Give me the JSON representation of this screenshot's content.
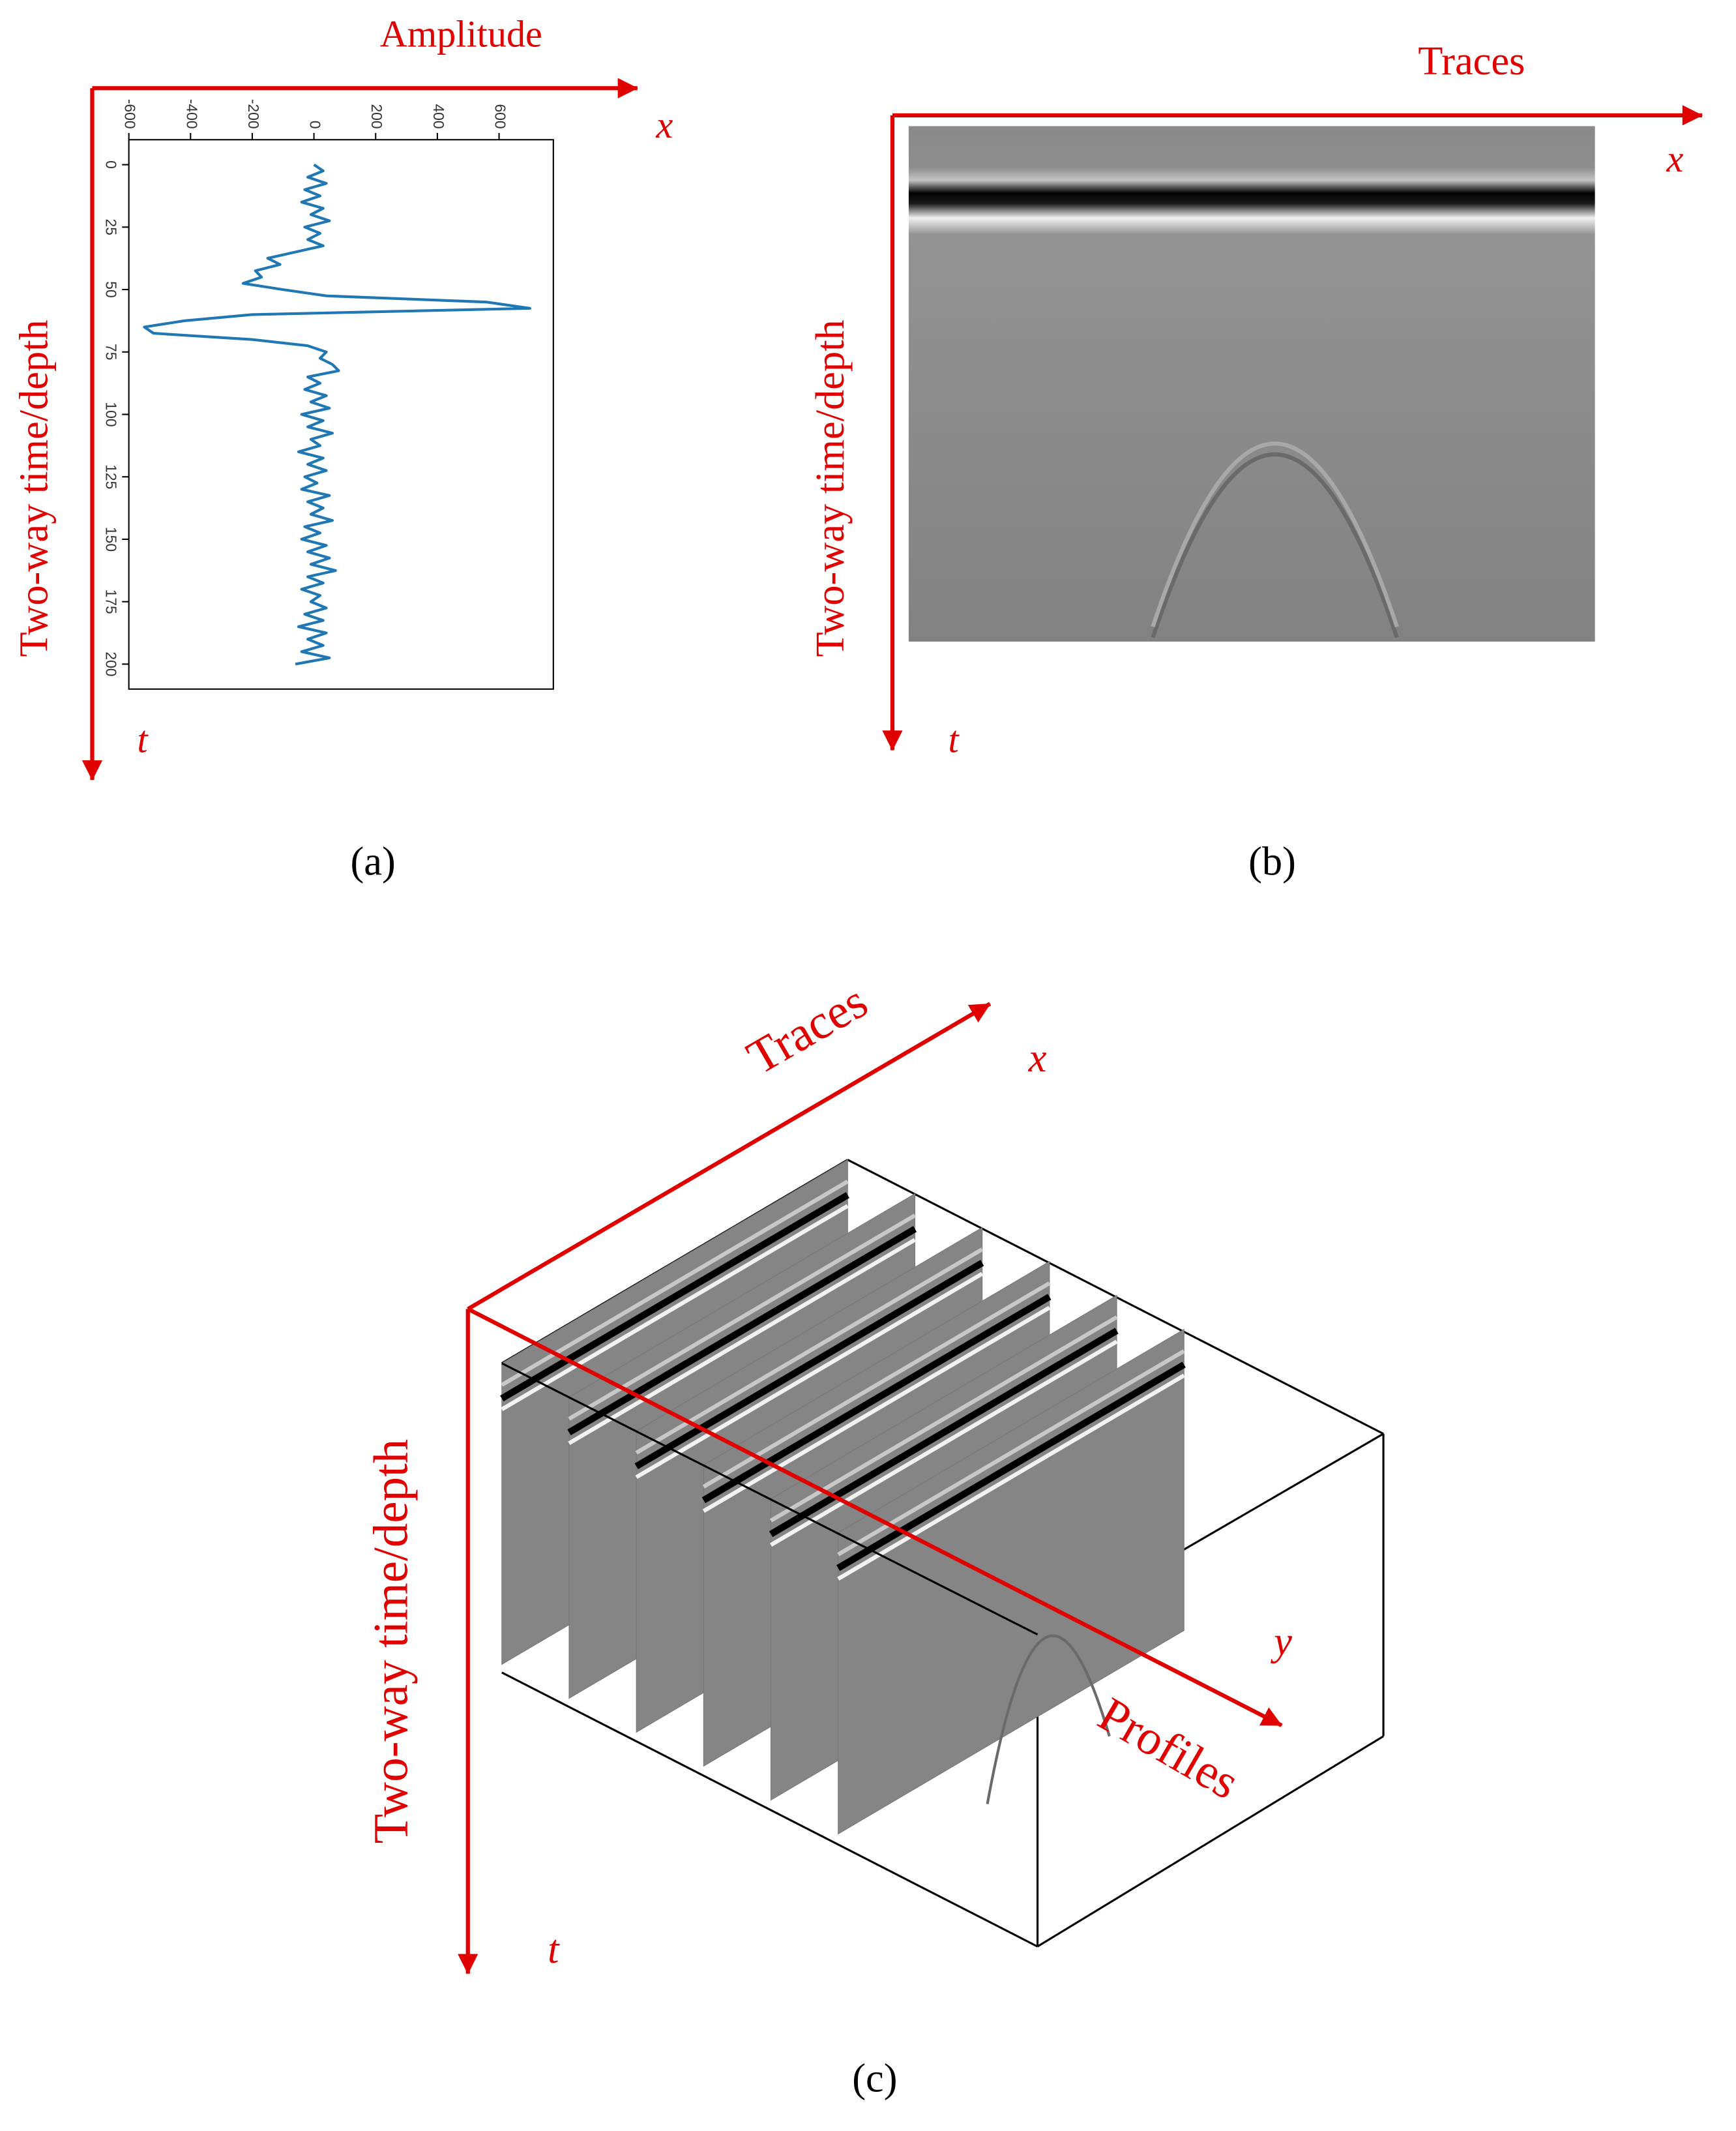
{
  "chart_data": {
    "type": "line",
    "x": [
      0,
      2.5,
      5,
      7.5,
      10,
      12.5,
      15,
      17.5,
      20,
      22.5,
      25,
      27.5,
      30,
      32.5,
      35,
      37.5,
      40,
      42.5,
      45,
      47.5,
      50,
      52.5,
      55,
      57.5,
      60,
      62.5,
      65,
      67.5,
      70,
      72.5,
      75,
      77.5,
      80,
      82.5,
      85,
      87.5,
      90,
      92.5,
      95,
      97.5,
      100,
      102.5,
      105,
      107.5,
      110,
      112.5,
      115,
      117.5,
      120,
      122.5,
      125,
      127.5,
      130,
      132.5,
      135,
      137.5,
      140,
      142.5,
      145,
      147.5,
      150,
      152.5,
      155,
      157.5,
      160,
      162.5,
      165,
      167.5,
      170,
      172.5,
      175,
      177.5,
      180,
      182.5,
      185,
      187.5,
      190,
      192.5,
      195,
      197.5,
      200
    ],
    "values": [
      0,
      30,
      -20,
      40,
      -30,
      20,
      -40,
      30,
      -10,
      50,
      -30,
      20,
      -20,
      30,
      -60,
      -150,
      -110,
      -190,
      -170,
      -230,
      -100,
      40,
      560,
      700,
      -200,
      -420,
      -550,
      -520,
      -200,
      -20,
      40,
      20,
      60,
      80,
      -20,
      20,
      -30,
      40,
      -10,
      50,
      -40,
      30,
      -20,
      60,
      -10,
      20,
      -50,
      30,
      -20,
      40,
      -30,
      10,
      -40,
      50,
      -20,
      30,
      -10,
      60,
      -30,
      20,
      -40,
      40,
      -20,
      50,
      -10,
      70,
      -20,
      30,
      -40,
      20,
      -10,
      40,
      -30,
      30,
      -50,
      40,
      -20,
      30,
      -40,
      50,
      -60
    ],
    "color": "#1f77b4",
    "xlim": [
      -10,
      210
    ],
    "xticks": [
      0,
      25,
      50,
      75,
      100,
      125,
      150,
      175,
      200
    ],
    "ylim": [
      -600,
      776
    ],
    "yticks": [
      -600,
      -400,
      -200,
      0,
      200,
      400,
      600
    ]
  },
  "panels": {
    "a": {
      "amplitude_label": "Amplitude",
      "x_symbol": "x",
      "t_symbol": "t",
      "time_label": "Two-way time/depth",
      "caption": "(a)"
    },
    "b": {
      "traces_label": "Traces",
      "x_symbol": "x",
      "t_symbol": "t",
      "time_label": "Two-way time/depth",
      "caption": "(b)"
    },
    "c": {
      "traces_label": "Traces",
      "x_symbol": "x",
      "profiles_label": "Profiles",
      "y_symbol": "y",
      "t_symbol": "t",
      "time_label": "Two-way time/depth",
      "caption": "(c)"
    }
  }
}
